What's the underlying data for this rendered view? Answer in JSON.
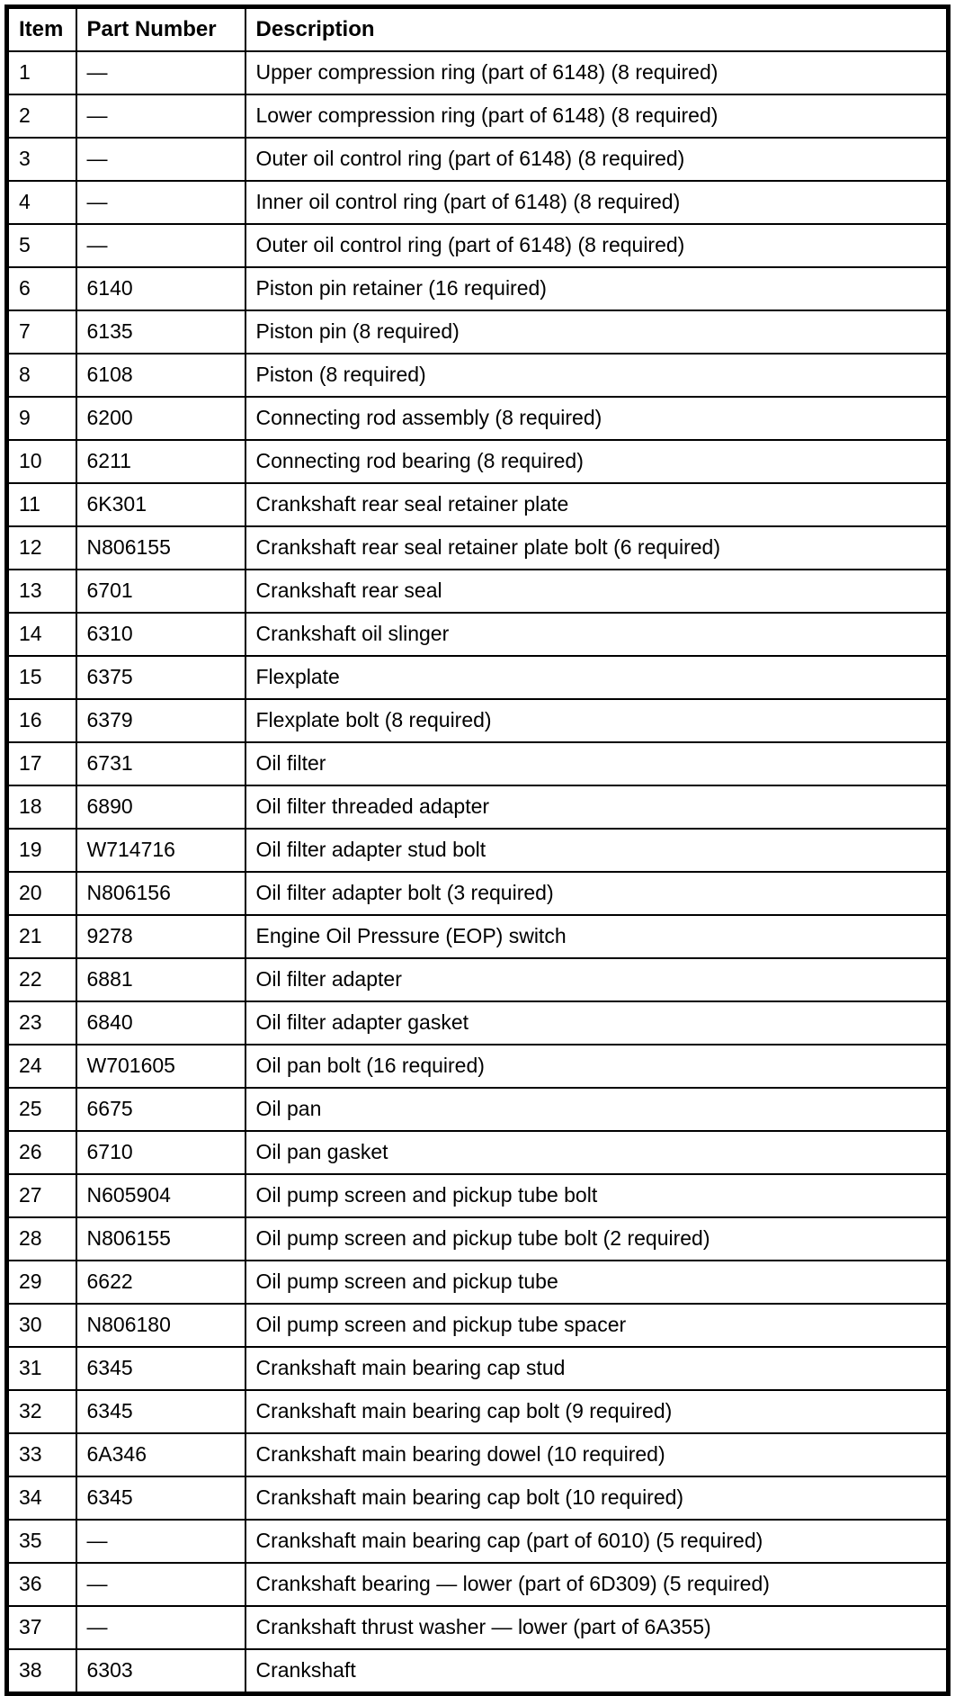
{
  "colors": {
    "background": "#ffffff",
    "border": "#000000",
    "text": "#000000"
  },
  "table": {
    "columns": [
      "Item",
      "Part Number",
      "Description"
    ],
    "rows": [
      {
        "item": "1",
        "part_number": "—",
        "description": "Upper compression ring (part of 6148) (8 required)"
      },
      {
        "item": "2",
        "part_number": "—",
        "description": "Lower compression ring (part of 6148) (8 required)"
      },
      {
        "item": "3",
        "part_number": "—",
        "description": "Outer oil control ring (part of 6148) (8 required)"
      },
      {
        "item": "4",
        "part_number": "—",
        "description": "Inner oil control ring (part of 6148) (8 required)"
      },
      {
        "item": "5",
        "part_number": "—",
        "description": "Outer oil control ring (part of 6148) (8 required)"
      },
      {
        "item": "6",
        "part_number": "6140",
        "description": "Piston pin retainer (16 required)"
      },
      {
        "item": "7",
        "part_number": "6135",
        "description": "Piston pin (8 required)"
      },
      {
        "item": "8",
        "part_number": "6108",
        "description": "Piston (8 required)"
      },
      {
        "item": "9",
        "part_number": "6200",
        "description": "Connecting rod assembly (8 required)"
      },
      {
        "item": "10",
        "part_number": "6211",
        "description": "Connecting rod bearing (8 required)"
      },
      {
        "item": "11",
        "part_number": "6K301",
        "description": "Crankshaft rear seal retainer plate"
      },
      {
        "item": "12",
        "part_number": "N806155",
        "description": "Crankshaft rear seal retainer plate bolt (6 required)"
      },
      {
        "item": "13",
        "part_number": "6701",
        "description": "Crankshaft rear seal"
      },
      {
        "item": "14",
        "part_number": "6310",
        "description": "Crankshaft oil slinger"
      },
      {
        "item": "15",
        "part_number": "6375",
        "description": "Flexplate"
      },
      {
        "item": "16",
        "part_number": "6379",
        "description": "Flexplate bolt (8 required)"
      },
      {
        "item": "17",
        "part_number": "6731",
        "description": "Oil filter"
      },
      {
        "item": "18",
        "part_number": "6890",
        "description": "Oil filter threaded adapter"
      },
      {
        "item": "19",
        "part_number": "W714716",
        "description": "Oil filter adapter stud bolt"
      },
      {
        "item": "20",
        "part_number": "N806156",
        "description": "Oil filter adapter bolt (3 required)"
      },
      {
        "item": "21",
        "part_number": "9278",
        "description": "Engine Oil Pressure (EOP) switch"
      },
      {
        "item": "22",
        "part_number": "6881",
        "description": "Oil filter adapter"
      },
      {
        "item": "23",
        "part_number": "6840",
        "description": "Oil filter adapter gasket"
      },
      {
        "item": "24",
        "part_number": "W701605",
        "description": "Oil pan bolt (16 required)"
      },
      {
        "item": "25",
        "part_number": "6675",
        "description": "Oil pan"
      },
      {
        "item": "26",
        "part_number": "6710",
        "description": "Oil pan gasket"
      },
      {
        "item": "27",
        "part_number": "N605904",
        "description": "Oil pump screen and pickup tube bolt"
      },
      {
        "item": "28",
        "part_number": "N806155",
        "description": "Oil pump screen and pickup tube bolt (2 required)"
      },
      {
        "item": "29",
        "part_number": "6622",
        "description": "Oil pump screen and pickup tube"
      },
      {
        "item": "30",
        "part_number": "N806180",
        "description": "Oil pump screen and pickup tube spacer"
      },
      {
        "item": "31",
        "part_number": "6345",
        "description": "Crankshaft main bearing cap stud"
      },
      {
        "item": "32",
        "part_number": "6345",
        "description": "Crankshaft main bearing cap bolt (9 required)"
      },
      {
        "item": "33",
        "part_number": "6A346",
        "description": "Crankshaft main bearing dowel (10 required)"
      },
      {
        "item": "34",
        "part_number": "6345",
        "description": "Crankshaft main bearing cap bolt (10 required)"
      },
      {
        "item": "35",
        "part_number": "—",
        "description": "Crankshaft main bearing cap (part of 6010) (5 required)"
      },
      {
        "item": "36",
        "part_number": "—",
        "description": "Crankshaft bearing — lower (part of 6D309) (5 required)"
      },
      {
        "item": "37",
        "part_number": "—",
        "description": "Crankshaft thrust washer — lower (part of 6A355)"
      },
      {
        "item": "38",
        "part_number": "6303",
        "description": "Crankshaft"
      }
    ]
  }
}
